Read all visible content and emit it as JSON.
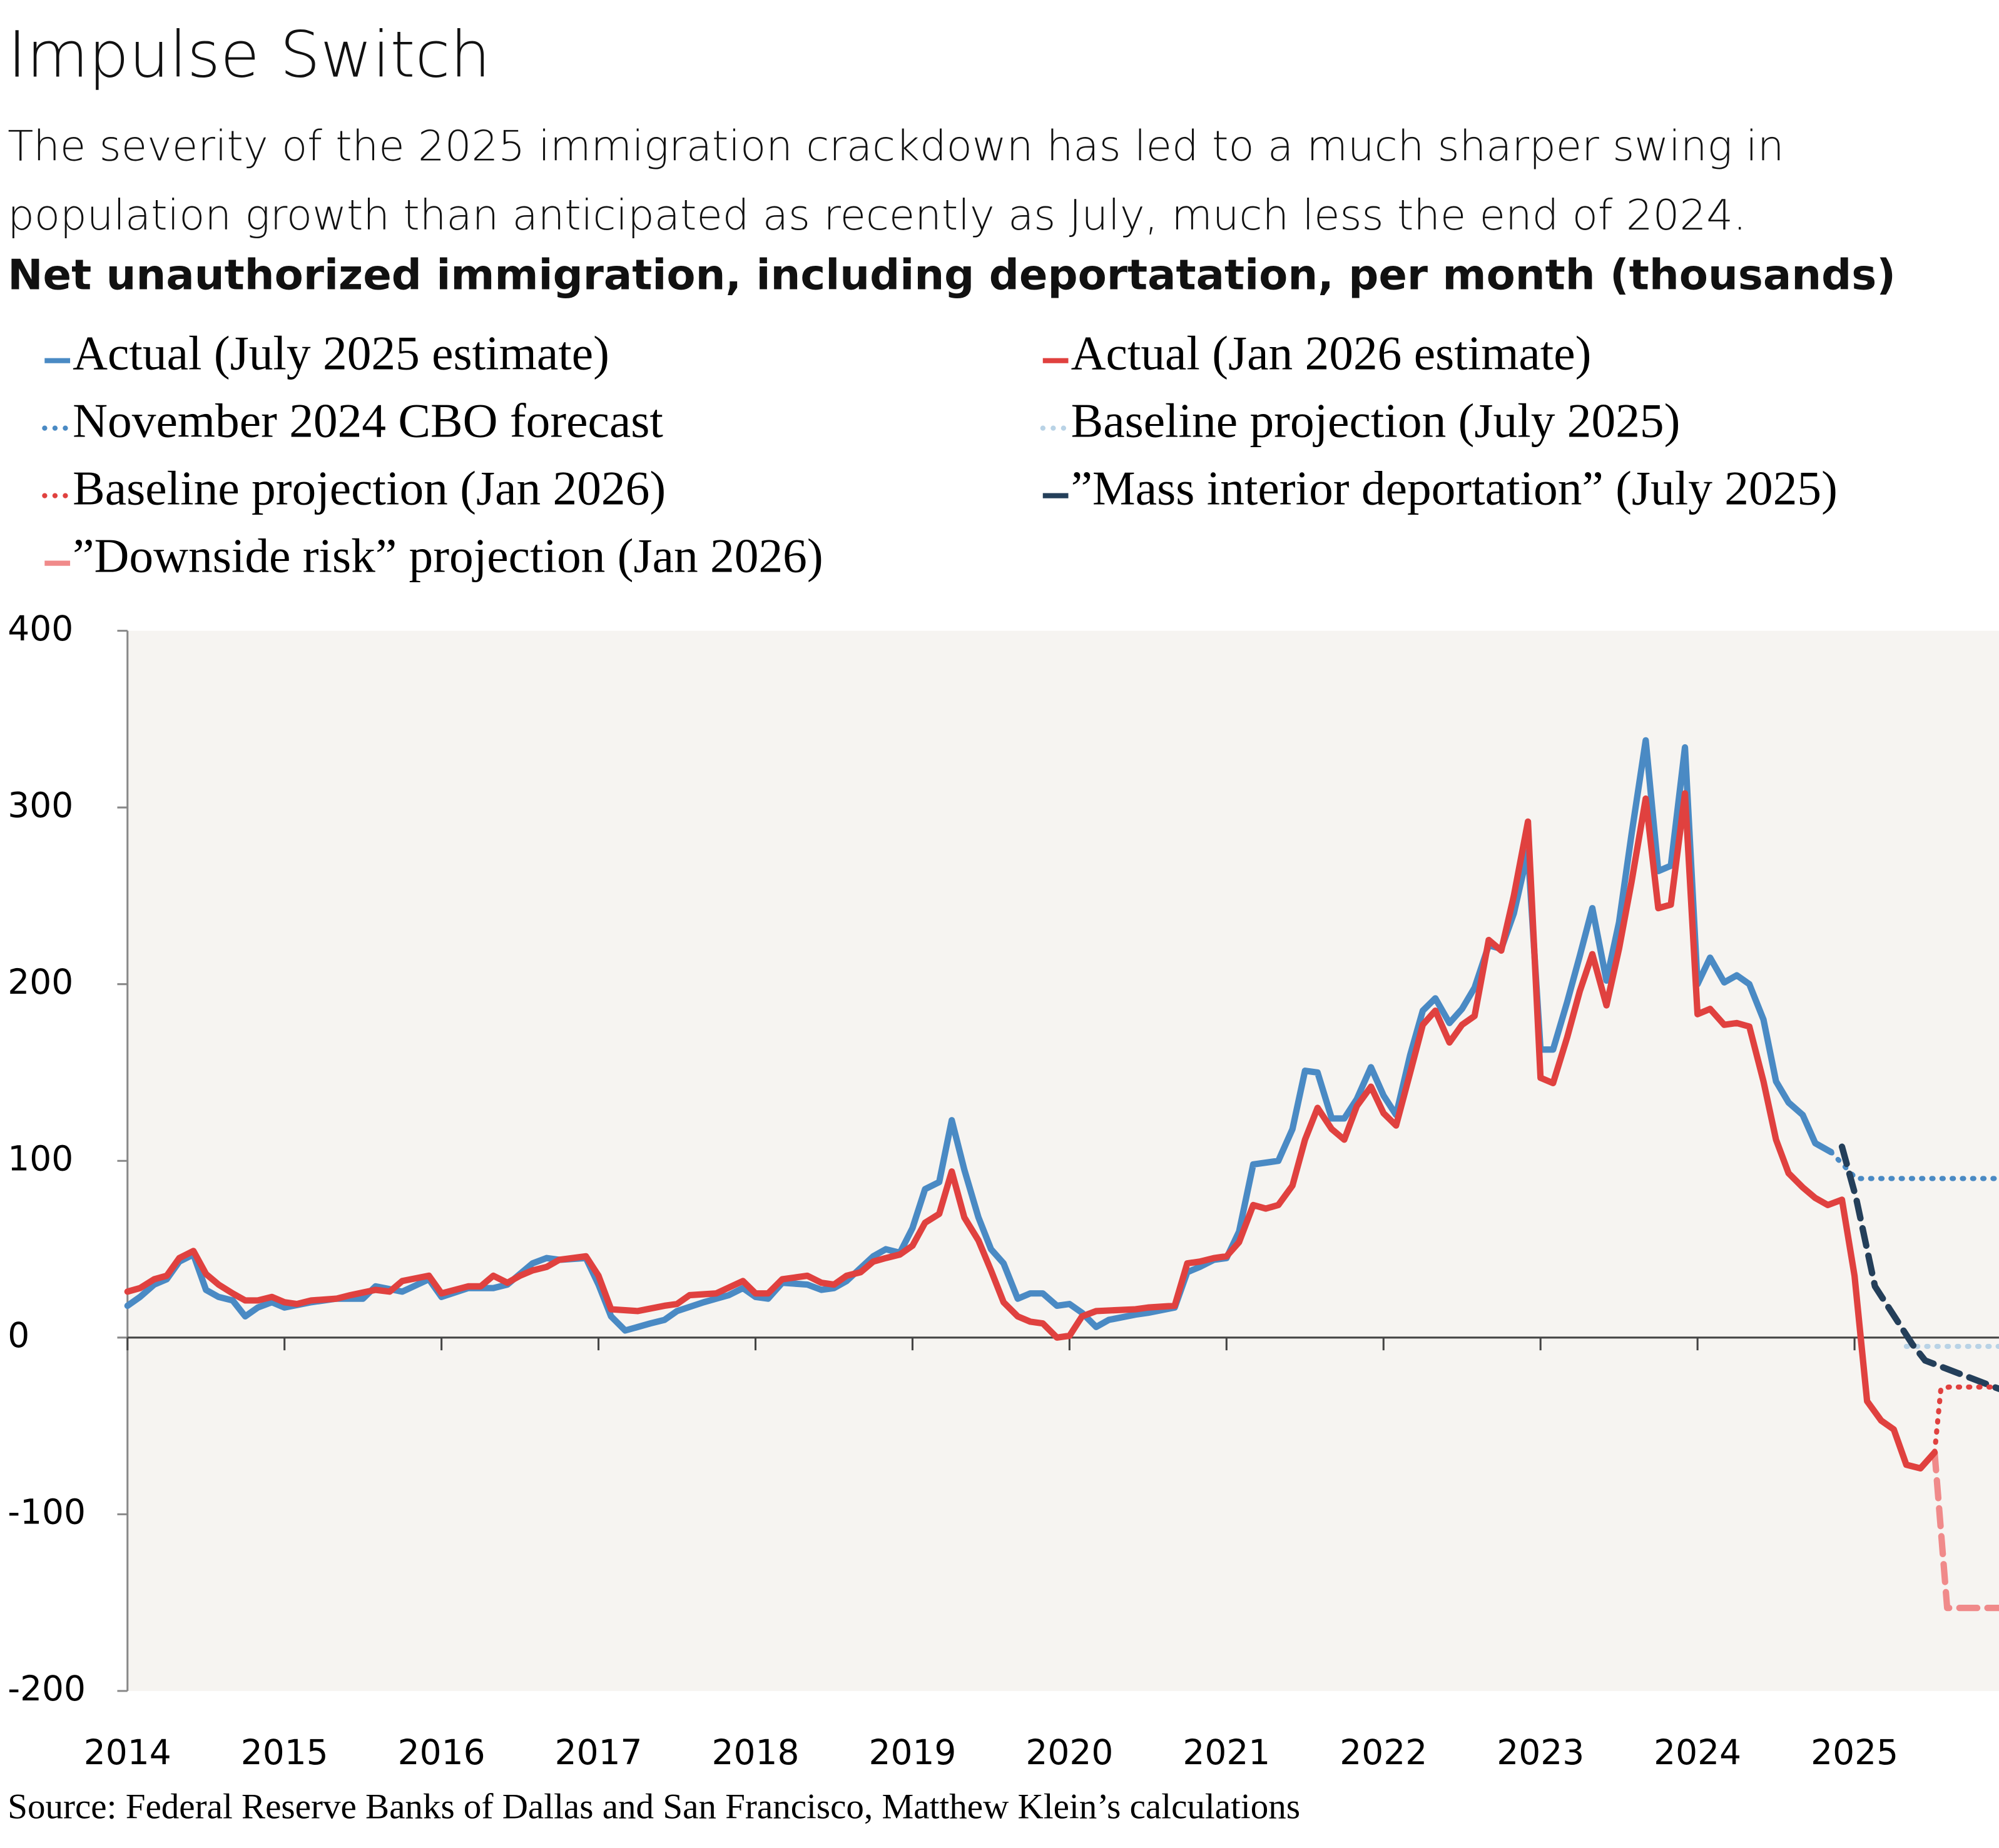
{
  "chart_data": {
    "type": "line",
    "title": "Impulse Switch",
    "subtitle": "The severity of the 2025 immigration crackdown has led to a much sharper swing in population growth than anticipated as recently as July, much less the end of 2024.",
    "y_label": "Net unauthorized immigration, including deportatation, per month (thousands)",
    "source": "Source: Federal Reserve Banks of Dallas and San Francisco, Matthew Klein’s calculations",
    "legend": "top",
    "xlim": [
      2014,
      2025.92
    ],
    "xticks": [
      2014,
      2015,
      2016,
      2017,
      2018,
      2019,
      2020,
      2021,
      2022,
      2023,
      2024,
      2025
    ],
    "ylim": [
      -200,
      400
    ],
    "yticks": [
      -200,
      -100,
      0,
      100,
      200,
      300,
      400
    ],
    "series": [
      {
        "name": "Actual (July 2025 estimate)",
        "color": "#4a8ac4",
        "style": "solid",
        "x": [
          2014,
          2014.08,
          2014.17,
          2014.25,
          2014.33,
          2014.42,
          2014.5,
          2014.58,
          2014.67,
          2014.75,
          2014.83,
          2014.92,
          2015,
          2015.17,
          2015.33,
          2015.5,
          2015.58,
          2015.75,
          2015.92,
          2016,
          2016.17,
          2016.33,
          2016.42,
          2016.58,
          2016.67,
          2016.75,
          2016.92,
          2017,
          2017.08,
          2017.17,
          2017.33,
          2017.42,
          2017.5,
          2017.67,
          2017.83,
          2017.92,
          2018,
          2018.08,
          2018.17,
          2018.33,
          2018.42,
          2018.5,
          2018.58,
          2018.75,
          2018.83,
          2018.92,
          2019,
          2019.08,
          2019.17,
          2019.25,
          2019.33,
          2019.42,
          2019.5,
          2019.58,
          2019.67,
          2019.75,
          2019.83,
          2019.92,
          2020,
          2020.08,
          2020.17,
          2020.25,
          2020.42,
          2020.5,
          2020.67,
          2020.75,
          2020.83,
          2020.92,
          2021,
          2021.08,
          2021.17,
          2021.33,
          2021.42,
          2021.5,
          2021.58,
          2021.67,
          2021.75,
          2021.83,
          2021.92,
          2022,
          2022.08,
          2022.17,
          2022.25,
          2022.33,
          2022.42,
          2022.5,
          2022.58,
          2022.67,
          2022.75,
          2022.83,
          2022.92,
          2023,
          2023.08,
          2023.17,
          2023.25,
          2023.33,
          2023.42,
          2023.5,
          2023.58,
          2023.67,
          2023.75,
          2023.83,
          2023.92,
          2024,
          2024.08,
          2024.17,
          2024.25,
          2024.33,
          2024.42,
          2024.5,
          2024.58,
          2024.67,
          2024.75,
          2024.85
        ],
        "values": [
          18,
          23,
          30,
          33,
          43,
          47,
          27,
          23,
          21,
          12,
          17,
          20,
          17,
          20,
          22,
          22,
          29,
          26,
          33,
          23,
          28,
          28,
          30,
          42,
          45,
          44,
          45,
          30,
          12,
          4,
          8,
          10,
          15,
          20,
          24,
          28,
          23,
          22,
          31,
          30,
          27,
          28,
          32,
          46,
          50,
          48,
          62,
          84,
          88,
          123,
          95,
          68,
          50,
          42,
          22,
          25,
          25,
          18,
          19,
          14,
          6,
          10,
          13,
          14,
          17,
          37,
          40,
          44,
          45,
          60,
          98,
          100,
          118,
          151,
          150,
          124,
          124,
          135,
          153,
          137,
          126,
          160,
          185,
          192,
          178,
          186,
          198,
          222,
          220,
          240,
          275,
          163,
          163,
          190,
          216,
          243,
          202,
          235,
          285,
          338,
          264,
          267,
          334,
          200,
          215,
          201,
          205,
          200,
          180,
          145,
          133,
          126,
          110,
          105
        ]
      },
      {
        "name": "Actual (Jan 2026 estimate)",
        "color": "#e0413f",
        "style": "solid",
        "x": [
          2014,
          2014.08,
          2014.17,
          2014.25,
          2014.33,
          2014.42,
          2014.5,
          2014.58,
          2014.67,
          2014.75,
          2014.83,
          2014.92,
          2015,
          2015.08,
          2015.17,
          2015.33,
          2015.42,
          2015.58,
          2015.67,
          2015.75,
          2015.92,
          2016,
          2016.17,
          2016.25,
          2016.33,
          2016.42,
          2016.5,
          2016.58,
          2016.67,
          2016.75,
          2016.92,
          2017,
          2017.08,
          2017.25,
          2017.42,
          2017.5,
          2017.58,
          2017.75,
          2017.92,
          2018,
          2018.08,
          2018.17,
          2018.25,
          2018.33,
          2018.42,
          2018.5,
          2018.58,
          2018.67,
          2018.75,
          2018.83,
          2018.92,
          2019,
          2019.08,
          2019.17,
          2019.25,
          2019.33,
          2019.42,
          2019.5,
          2019.58,
          2019.67,
          2019.75,
          2019.83,
          2019.92,
          2020,
          2020.08,
          2020.17,
          2020.42,
          2020.5,
          2020.67,
          2020.75,
          2020.83,
          2020.92,
          2021,
          2021.08,
          2021.17,
          2021.25,
          2021.33,
          2021.42,
          2021.5,
          2021.58,
          2021.67,
          2021.75,
          2021.83,
          2021.92,
          2022,
          2022.08,
          2022.17,
          2022.25,
          2022.33,
          2022.42,
          2022.5,
          2022.58,
          2022.67,
          2022.75,
          2022.83,
          2022.92,
          2023,
          2023.08,
          2023.17,
          2023.25,
          2023.33,
          2023.42,
          2023.5,
          2023.58,
          2023.67,
          2023.75,
          2023.83,
          2023.92,
          2024,
          2024.08,
          2024.17,
          2024.25,
          2024.33,
          2024.42,
          2024.5,
          2024.58,
          2024.67,
          2024.75,
          2024.83,
          2024.92,
          2025,
          2025.08,
          2025.17,
          2025.25,
          2025.33,
          2025.42,
          2025.51
        ],
        "values": [
          26,
          28,
          33,
          35,
          45,
          49,
          36,
          30,
          25,
          21,
          21,
          23,
          20,
          19,
          21,
          22,
          24,
          27,
          26,
          32,
          35,
          25,
          29,
          29,
          35,
          31,
          35,
          38,
          40,
          44,
          46,
          35,
          16,
          15,
          18,
          19,
          24,
          25,
          32,
          25,
          25,
          33,
          34,
          35,
          31,
          30,
          35,
          37,
          43,
          45,
          47,
          52,
          65,
          70,
          94,
          68,
          55,
          38,
          20,
          12,
          9,
          8,
          0,
          1,
          12,
          15,
          16,
          17,
          18,
          42,
          43,
          45,
          46,
          54,
          75,
          73,
          75,
          86,
          112,
          130,
          118,
          112,
          131,
          142,
          127,
          120,
          150,
          177,
          185,
          167,
          177,
          182,
          225,
          219,
          250,
          292,
          147,
          144,
          170,
          196,
          217,
          188,
          220,
          258,
          305,
          243,
          245,
          308,
          183,
          186,
          177,
          178,
          176,
          145,
          112,
          93,
          85,
          79,
          75,
          78,
          35,
          -36,
          -47,
          -52,
          -72,
          -74,
          -65
        ]
      },
      {
        "name": "November 2024 CBO forecast",
        "color": "#4a8ac4",
        "style": "dotted",
        "x": [
          2024.85,
          2025.01,
          2025.92
        ],
        "values": [
          105,
          90,
          90
        ]
      },
      {
        "name": "Baseline projection (July 2025)",
        "color": "#b9d3e6",
        "style": "dotted",
        "x": [
          2025.33,
          2025.92
        ],
        "values": [
          -5,
          -5
        ]
      },
      {
        "name": "Baseline projection (Jan 2026)",
        "color": "#e0413f",
        "style": "dotted",
        "x": [
          2025.51,
          2025.55,
          2025.6,
          2025.92
        ],
        "values": [
          -65,
          -29,
          -28,
          -28
        ]
      },
      {
        "name": "”Mass interior deportation” (July 2025)",
        "color": "#243f5a",
        "style": "dashed",
        "x": [
          2024.92,
          2025.01,
          2025.13,
          2025.37,
          2025.45,
          2025.92
        ],
        "values": [
          108,
          79,
          29,
          -4,
          -13,
          -29
        ]
      },
      {
        "name": "”Downside risk” projection (Jan 2026)",
        "color": "#f08a8a",
        "style": "dashed",
        "x": [
          2025.51,
          2025.59,
          2025.92
        ],
        "values": [
          -65,
          -153,
          -153
        ]
      }
    ]
  }
}
